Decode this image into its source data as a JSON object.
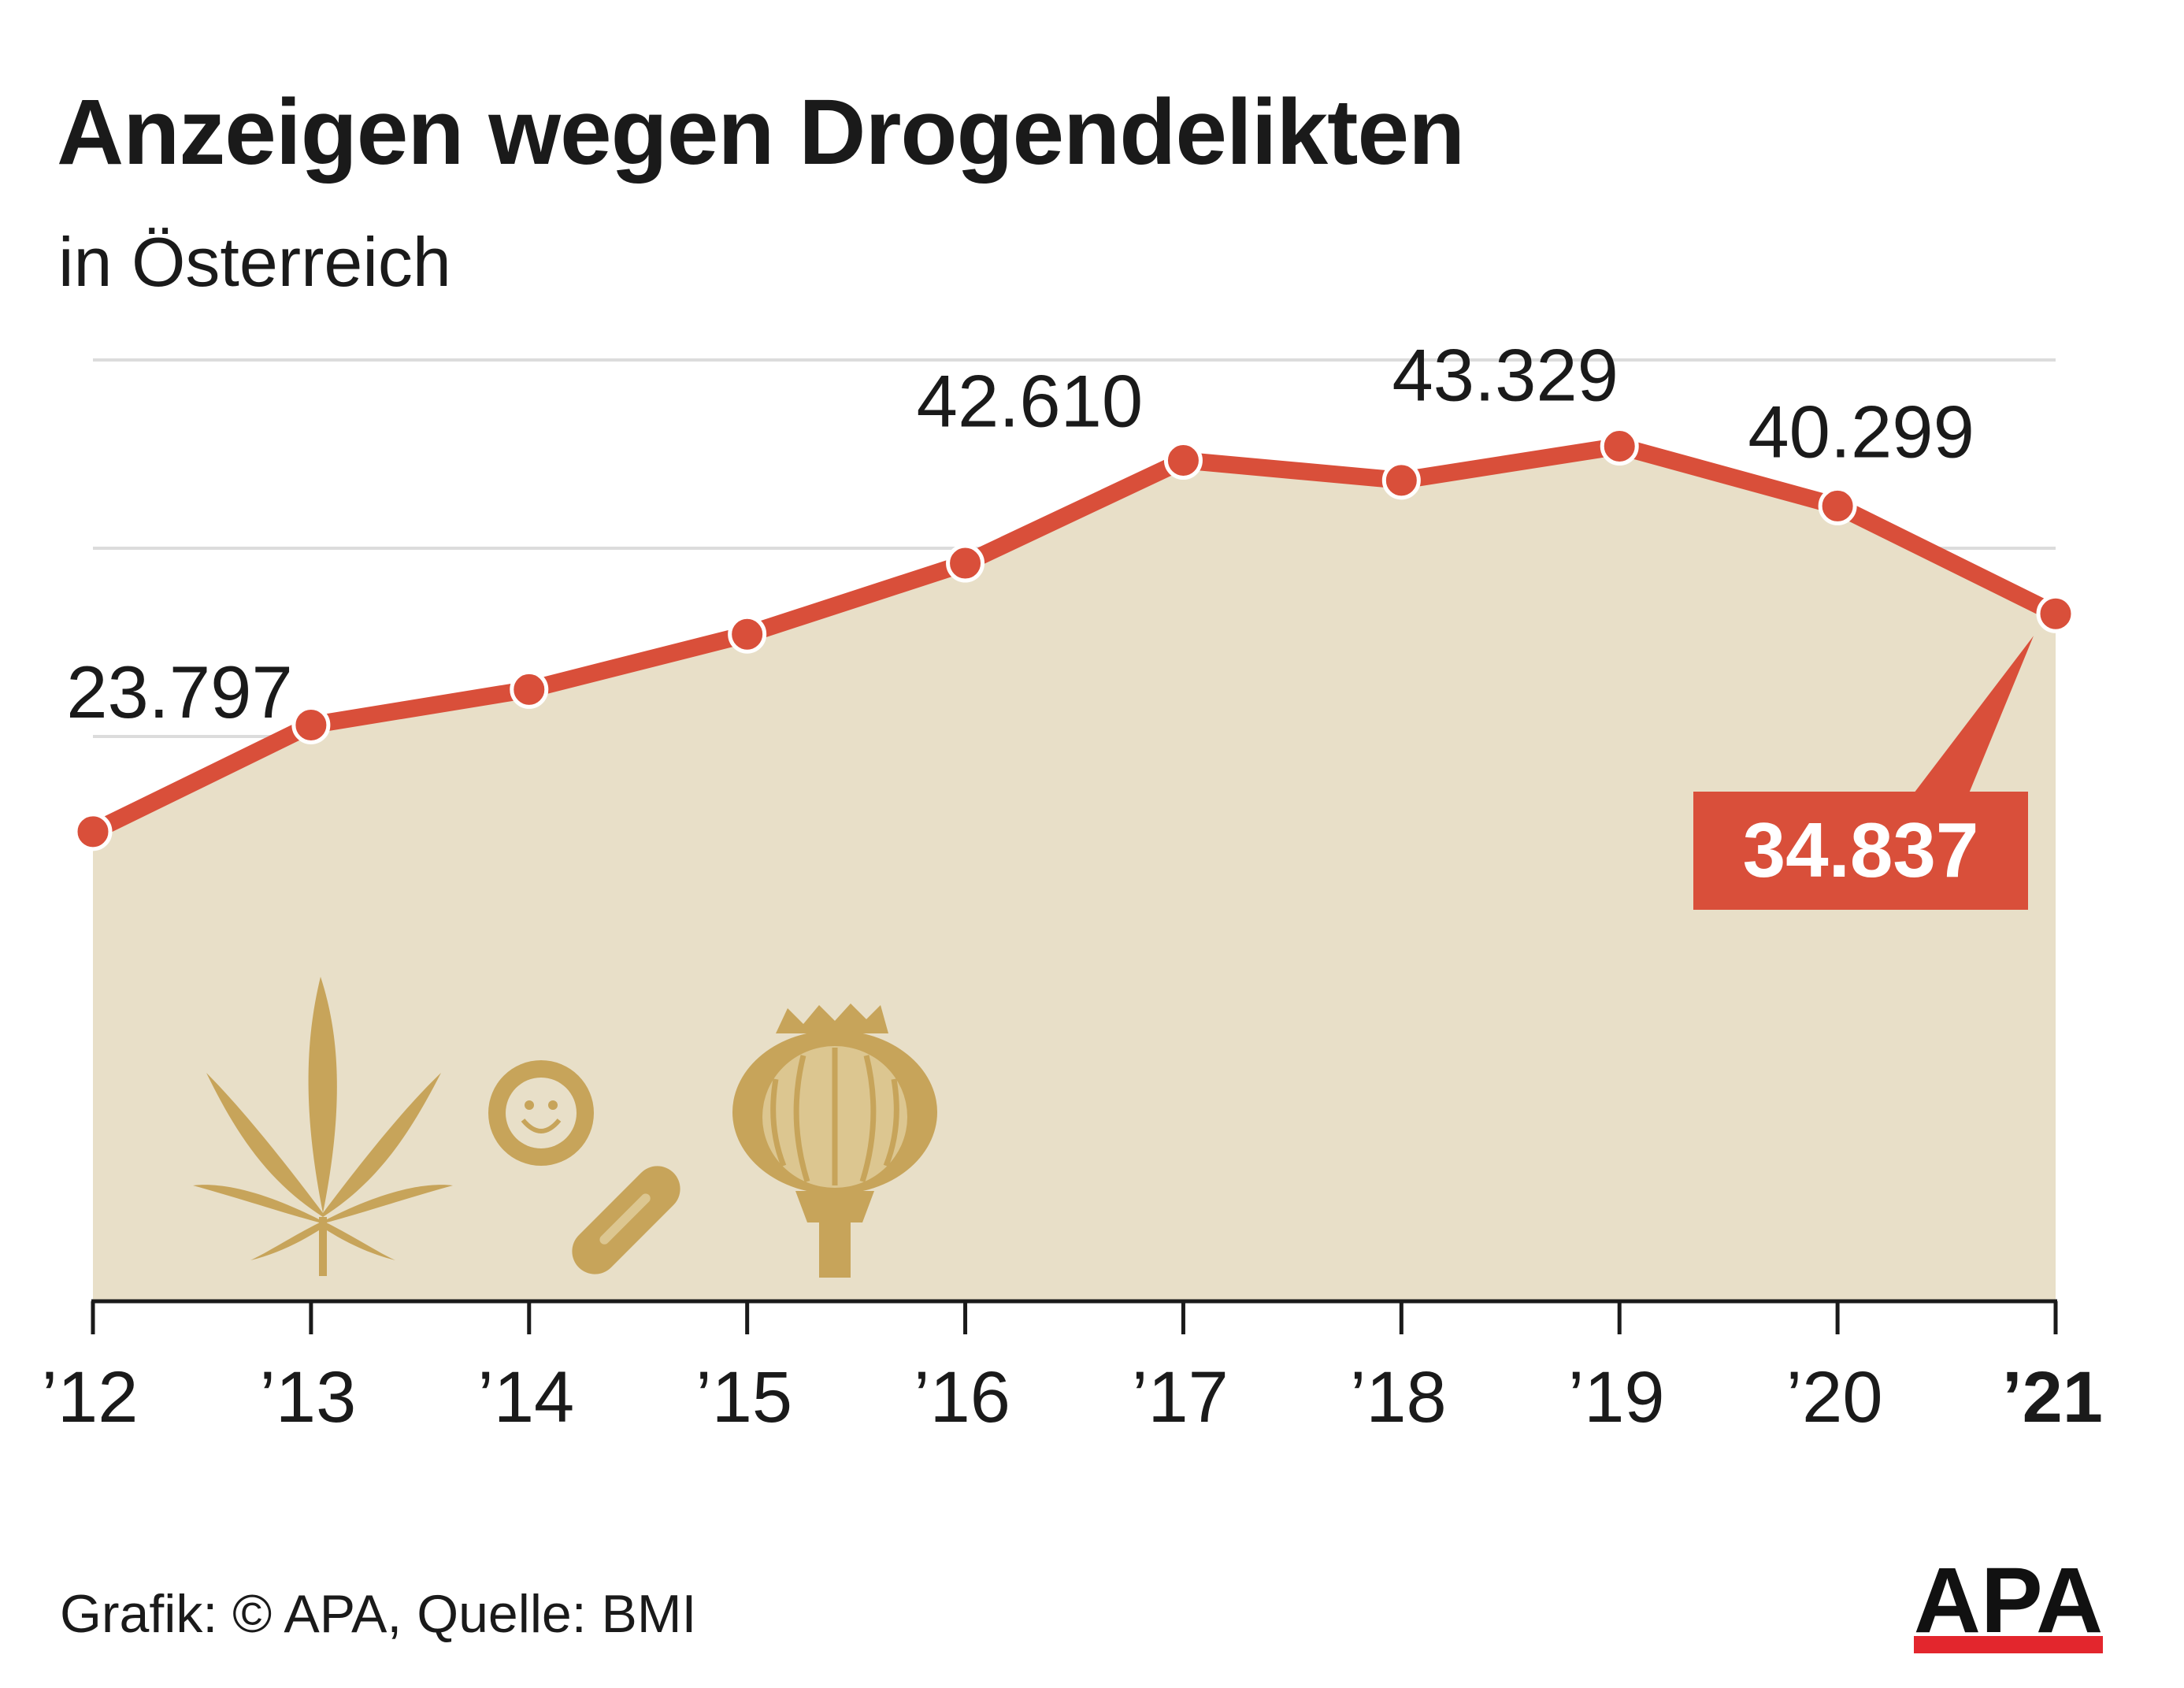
{
  "title": "Anzeigen wegen Drogendelikten",
  "subtitle": "in Österreich",
  "source": "Grafik: © APA, Quelle: BMI",
  "logo": "APA",
  "colors": {
    "line": "#d94f3a",
    "area": "#e8dfc8",
    "grid": "#dcdcdc",
    "icons": "#c7a45a",
    "callout_bg": "#d94f3a",
    "callout_text": "#ffffff",
    "logo_red": "#e3262d"
  },
  "icons": [
    "cannabis-leaf-icon",
    "ecstasy-pill-icon",
    "capsule-icon",
    "poppy-pod-icon"
  ],
  "chart_data": {
    "type": "area",
    "x": [
      "’12",
      "’13",
      "’14",
      "’15",
      "’16",
      "’17",
      "’18",
      "’19",
      "’20",
      "’21"
    ],
    "values": [
      23797,
      29200,
      31000,
      33800,
      37400,
      42610,
      41600,
      43329,
      40299,
      34837
    ],
    "ylim": [
      0,
      47700
    ],
    "gridlines": [
      0,
      9540,
      19080,
      28620,
      38160,
      47700
    ],
    "data_labels": [
      {
        "index": 0,
        "text": "23.797"
      },
      {
        "index": 5,
        "text": "42.610"
      },
      {
        "index": 7,
        "text": "43.329"
      },
      {
        "index": 8,
        "text": "40.299"
      }
    ],
    "highlight": {
      "index": 9,
      "text": "34.837"
    },
    "grid": true,
    "legend": "none"
  }
}
